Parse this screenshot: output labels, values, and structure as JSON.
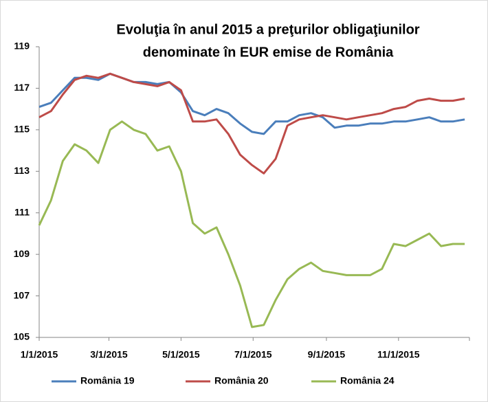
{
  "chart_data": {
    "type": "line",
    "title": [
      "Evoluţia în anul 2015 a preţurilor obligaţiunilor",
      "denominate în EUR emise de România"
    ],
    "x": [
      "2015-01-01",
      "2015-01-11",
      "2015-01-21",
      "2015-01-31",
      "2015-02-10",
      "2015-02-20",
      "2015-03-02",
      "2015-03-12",
      "2015-03-22",
      "2015-04-01",
      "2015-04-11",
      "2015-04-21",
      "2015-05-01",
      "2015-05-11",
      "2015-05-21",
      "2015-05-31",
      "2015-06-10",
      "2015-06-20",
      "2015-06-30",
      "2015-07-10",
      "2015-07-20",
      "2015-07-30",
      "2015-08-09",
      "2015-08-19",
      "2015-08-29",
      "2015-09-08",
      "2015-09-18",
      "2015-09-28",
      "2015-10-08",
      "2015-10-18",
      "2015-10-28",
      "2015-11-07",
      "2015-11-17",
      "2015-11-27",
      "2015-12-07",
      "2015-12-17",
      "2015-12-27"
    ],
    "series": [
      {
        "name": "România 19",
        "color": "#4a7ebb",
        "values": [
          116.1,
          116.3,
          116.9,
          117.5,
          117.5,
          117.4,
          117.7,
          117.5,
          117.3,
          117.3,
          117.2,
          117.3,
          116.8,
          115.9,
          115.7,
          116.0,
          115.8,
          115.3,
          114.9,
          114.8,
          115.4,
          115.4,
          115.7,
          115.8,
          115.6,
          115.1,
          115.2,
          115.2,
          115.3,
          115.3,
          115.4,
          115.4,
          115.5,
          115.6,
          115.4,
          115.4,
          115.5
        ]
      },
      {
        "name": "România 20",
        "color": "#be4b48",
        "values": [
          115.6,
          115.9,
          116.7,
          117.4,
          117.6,
          117.5,
          117.7,
          117.5,
          117.3,
          117.2,
          117.1,
          117.3,
          116.9,
          115.4,
          115.4,
          115.5,
          114.8,
          113.8,
          113.3,
          112.9,
          113.6,
          115.2,
          115.5,
          115.6,
          115.7,
          115.6,
          115.5,
          115.6,
          115.7,
          115.8,
          116.0,
          116.1,
          116.4,
          116.5,
          116.4,
          116.4,
          116.5
        ]
      },
      {
        "name": "România 24",
        "color": "#98b954",
        "values": [
          110.4,
          111.6,
          113.5,
          114.3,
          114.0,
          113.4,
          115.0,
          115.4,
          115.0,
          114.8,
          114.0,
          114.2,
          113.0,
          110.5,
          110.0,
          110.3,
          109.0,
          107.5,
          105.5,
          105.6,
          106.8,
          107.8,
          108.3,
          108.6,
          108.2,
          108.1,
          108.0,
          108.0,
          108.0,
          108.3,
          109.5,
          109.4,
          109.7,
          110.0,
          109.4,
          109.5,
          109.5
        ]
      }
    ],
    "xlim": [
      "2015-01-01",
      "2015-12-31"
    ],
    "xticks": [
      {
        "value": "2015-01-01",
        "label": "1/1/2015"
      },
      {
        "value": "2015-03-01",
        "label": "3/1/2015"
      },
      {
        "value": "2015-05-01",
        "label": "5/1/2015"
      },
      {
        "value": "2015-07-01",
        "label": "7/1/2015"
      },
      {
        "value": "2015-09-01",
        "label": "9/1/2015"
      },
      {
        "value": "2015-11-01",
        "label": "11/1/2015"
      }
    ],
    "ylim": [
      105,
      119
    ],
    "yticks": [
      105,
      107,
      109,
      111,
      113,
      115,
      117,
      119
    ],
    "grid": false,
    "legend": "bottom"
  }
}
